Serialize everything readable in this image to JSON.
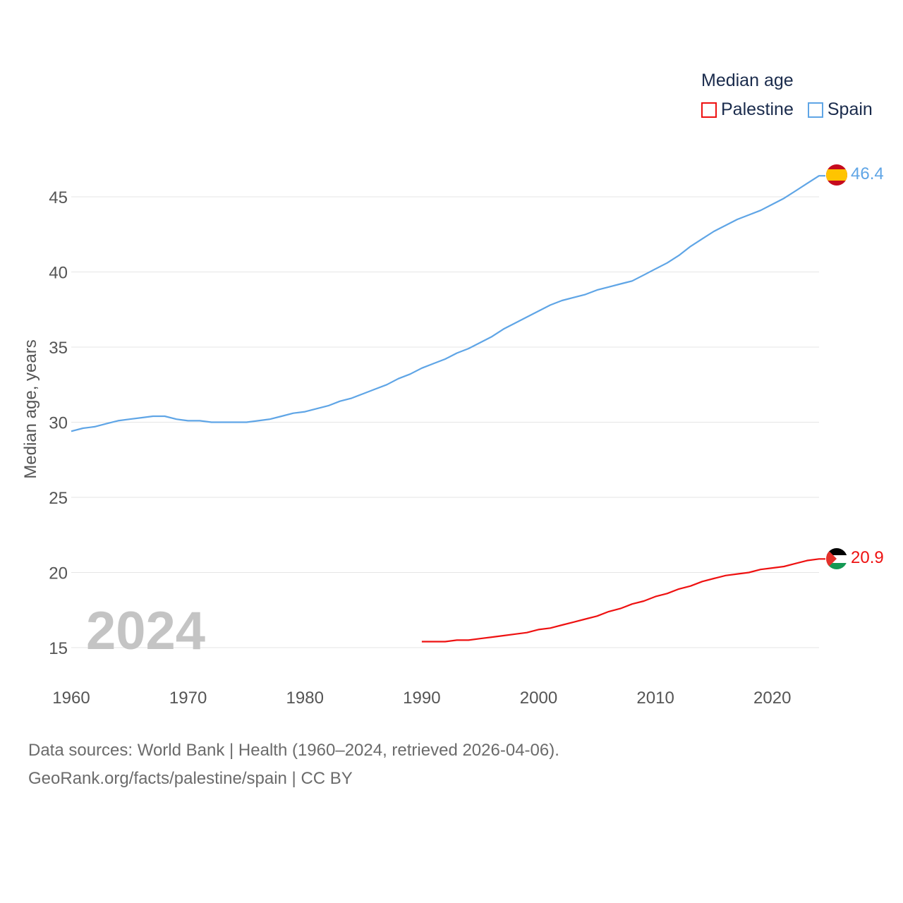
{
  "legend": {
    "title": "Median age",
    "items": [
      {
        "label": "Palestine",
        "color": "#ee1111"
      },
      {
        "label": "Spain",
        "color": "#5fa5e6"
      }
    ]
  },
  "footer": {
    "line1": "Data sources: World Bank | Health (1960–2024, retrieved 2026-04-06).",
    "line2": "GeoRank.org/facts/palestine/spain | CC BY"
  },
  "chart_data": {
    "type": "line",
    "title": "Median age",
    "xlabel": "",
    "ylabel": "Median age, years",
    "xlim": [
      1960,
      2024
    ],
    "ylim": [
      13,
      47.5
    ],
    "x_ticks": [
      1960,
      1970,
      1980,
      1990,
      2000,
      2010,
      2020
    ],
    "y_ticks": [
      15,
      20,
      25,
      30,
      35,
      40,
      45
    ],
    "grid": true,
    "legend_position": "top-right",
    "year_label": "2024",
    "series": [
      {
        "name": "Spain",
        "color": "#5fa5e6",
        "end_label": "46.4",
        "x": [
          1960,
          1961,
          1962,
          1963,
          1964,
          1965,
          1966,
          1967,
          1968,
          1969,
          1970,
          1971,
          1972,
          1973,
          1974,
          1975,
          1976,
          1977,
          1978,
          1979,
          1980,
          1981,
          1982,
          1983,
          1984,
          1985,
          1986,
          1987,
          1988,
          1989,
          1990,
          1991,
          1992,
          1993,
          1994,
          1995,
          1996,
          1997,
          1998,
          1999,
          2000,
          2001,
          2002,
          2003,
          2004,
          2005,
          2006,
          2007,
          2008,
          2009,
          2010,
          2011,
          2012,
          2013,
          2014,
          2015,
          2016,
          2017,
          2018,
          2019,
          2020,
          2021,
          2022,
          2023,
          2024
        ],
        "values": [
          29.4,
          29.6,
          29.7,
          29.9,
          30.1,
          30.2,
          30.3,
          30.4,
          30.4,
          30.2,
          30.1,
          30.1,
          30.0,
          30.0,
          30.0,
          30.0,
          30.1,
          30.2,
          30.4,
          30.6,
          30.7,
          30.9,
          31.1,
          31.4,
          31.6,
          31.9,
          32.2,
          32.5,
          32.9,
          33.2,
          33.6,
          33.9,
          34.2,
          34.6,
          34.9,
          35.3,
          35.7,
          36.2,
          36.6,
          37.0,
          37.4,
          37.8,
          38.1,
          38.3,
          38.5,
          38.8,
          39.0,
          39.2,
          39.4,
          39.8,
          40.2,
          40.6,
          41.1,
          41.7,
          42.2,
          42.7,
          43.1,
          43.5,
          43.8,
          44.1,
          44.5,
          44.9,
          45.4,
          45.9,
          46.4
        ]
      },
      {
        "name": "Palestine",
        "color": "#ee1111",
        "end_label": "20.9",
        "x": [
          1990,
          1991,
          1992,
          1993,
          1994,
          1995,
          1996,
          1997,
          1998,
          1999,
          2000,
          2001,
          2002,
          2003,
          2004,
          2005,
          2006,
          2007,
          2008,
          2009,
          2010,
          2011,
          2012,
          2013,
          2014,
          2015,
          2016,
          2017,
          2018,
          2019,
          2020,
          2021,
          2022,
          2023,
          2024
        ],
        "values": [
          15.4,
          15.4,
          15.4,
          15.5,
          15.5,
          15.6,
          15.7,
          15.8,
          15.9,
          16.0,
          16.2,
          16.3,
          16.5,
          16.7,
          16.9,
          17.1,
          17.4,
          17.6,
          17.9,
          18.1,
          18.4,
          18.6,
          18.9,
          19.1,
          19.4,
          19.6,
          19.8,
          19.9,
          20.0,
          20.2,
          20.3,
          20.4,
          20.6,
          20.8,
          20.9
        ]
      }
    ]
  }
}
